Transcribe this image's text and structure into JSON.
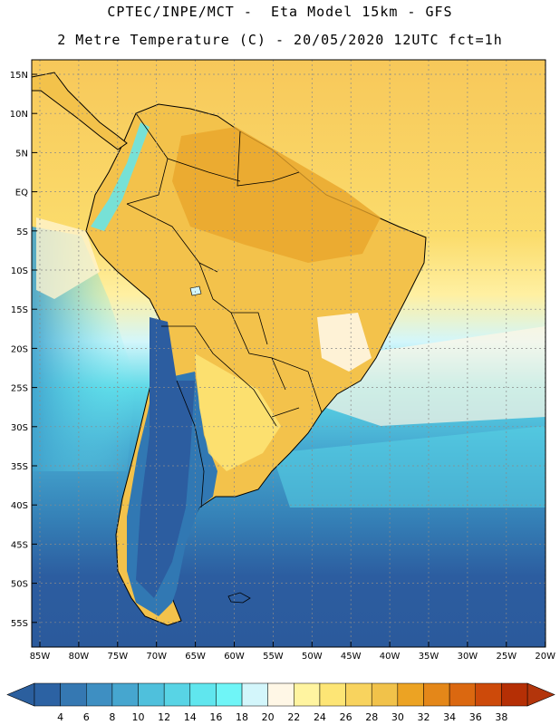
{
  "title_line1": "CPTEC/INPE/MCT -  Eta Model 15km - GFS",
  "title_line2": "2 Metre Temperature (C) - 20/05/2020 12UTC fct=1h",
  "lat_labels": [
    "15N",
    "10N",
    "5N",
    "EQ",
    "5S",
    "10S",
    "15S",
    "20S",
    "25S",
    "30S",
    "35S",
    "40S",
    "45S",
    "50S",
    "55S"
  ],
  "lon_labels": [
    "85W",
    "80W",
    "75W",
    "70W",
    "65W",
    "60W",
    "55W",
    "50W",
    "45W",
    "40W",
    "35W",
    "30W",
    "25W",
    "20W"
  ],
  "colorbar": {
    "labels": [
      "4",
      "6",
      "8",
      "10",
      "12",
      "14",
      "16",
      "18",
      "20",
      "22",
      "24",
      "26",
      "28",
      "30",
      "32",
      "34",
      "36",
      "38"
    ],
    "colors": [
      "#2c62a3",
      "#3578b2",
      "#3e8fc2",
      "#46a6cf",
      "#4fc0dc",
      "#58d4e5",
      "#60e6ee",
      "#6ff5f7",
      "#d3f6fb",
      "#fff7e6",
      "#fff4a0",
      "#fde575",
      "#f8d35e",
      "#f1c24a",
      "#eca323",
      "#e48719",
      "#db6810",
      "#cd4a0a",
      "#b52f05"
    ],
    "low_color": "#2b5f9e",
    "high_color": "#b3350b"
  },
  "colors": {
    "ocean_cold": "#2c5da0",
    "land_warm": "#f1c24a",
    "border": "#000000",
    "grid": "#8a8a8a"
  }
}
